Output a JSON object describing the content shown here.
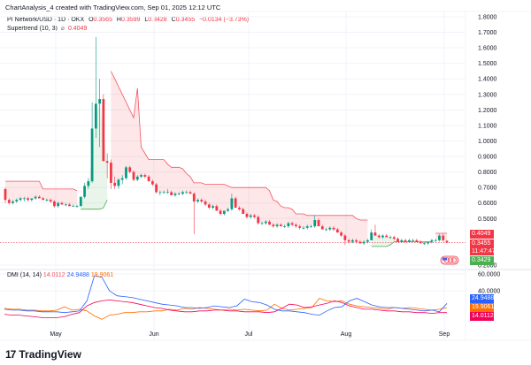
{
  "header": {
    "title": "ChartAnalysis_4 created with TradingView.com, Sep 01, 2025 12:12 UTC"
  },
  "legend": {
    "symbol": "PI Network/USD · 1D · OKX",
    "o_label": "O",
    "o": "0.3565",
    "h_label": "H",
    "h": "0.3599",
    "l_label": "L",
    "l": "0.3428",
    "c_label": "C",
    "c": "0.3455",
    "change": "−0.0134 (−3.73%)",
    "indicator": "Supertrend (10, 3)",
    "indicator_icon": "⌀",
    "indicator_value": "0.4049"
  },
  "dmi_legend": {
    "name": "DMI (14, 14)",
    "minus_di": "14.0112",
    "plus_di": "24.9488",
    "adx": "19.9061"
  },
  "price_tags": {
    "supertrend": "0.4049",
    "last": "0.3455",
    "countdown": "11:47:47",
    "low": "0.3429"
  },
  "dmi_tags": {
    "plus_di": "24.9488",
    "adx": "19.9061",
    "minus_di": "14.0112"
  },
  "branding": {
    "word": "TradingView",
    "mark": "17"
  },
  "colors": {
    "up": "#089981",
    "down": "#f23645",
    "supertrend_down": "#f7525f",
    "supertrend_up": "#4caf50",
    "fill_down": "rgba(242,54,69,0.12)",
    "fill_up": "rgba(76,175,80,0.12)",
    "plus_di": "#2962ff",
    "minus_di": "#f50057",
    "adx": "#ff6d00"
  },
  "chart_data": [
    {
      "type": "candlestick",
      "title": "PI Network/USD · 1D · OKX",
      "xlabel": "",
      "ylabel": "Price (USD)",
      "ylim": [
        0.2,
        1.8
      ],
      "y_ticks": [
        "1.8000",
        "1.7000",
        "1.6000",
        "1.5000",
        "1.4000",
        "1.3000",
        "1.2000",
        "1.1000",
        "1.0000",
        "0.9000",
        "0.8000",
        "0.7000",
        "0.6000",
        "0.5000",
        "0.2000"
      ],
      "x_ticks": [
        "May",
        "Jun",
        "Jul",
        "Aug",
        "Sep"
      ],
      "grid": true,
      "candles": [
        [
          0.69,
          0.7,
          0.6,
          0.62
        ],
        [
          0.62,
          0.63,
          0.59,
          0.6
        ],
        [
          0.6,
          0.62,
          0.59,
          0.61
        ],
        [
          0.61,
          0.63,
          0.6,
          0.62
        ],
        [
          0.62,
          0.64,
          0.61,
          0.63
        ],
        [
          0.63,
          0.64,
          0.61,
          0.63
        ],
        [
          0.63,
          0.64,
          0.61,
          0.62
        ],
        [
          0.62,
          0.63,
          0.61,
          0.63
        ],
        [
          0.63,
          0.65,
          0.62,
          0.64
        ],
        [
          0.64,
          0.65,
          0.63,
          0.63
        ],
        [
          0.63,
          0.64,
          0.62,
          0.62
        ],
        [
          0.62,
          0.63,
          0.61,
          0.62
        ],
        [
          0.62,
          0.63,
          0.6,
          0.61
        ],
        [
          0.61,
          0.62,
          0.57,
          0.58
        ],
        [
          0.58,
          0.61,
          0.57,
          0.6
        ],
        [
          0.6,
          0.61,
          0.59,
          0.59
        ],
        [
          0.59,
          0.6,
          0.58,
          0.59
        ],
        [
          0.59,
          0.6,
          0.58,
          0.58
        ],
        [
          0.58,
          0.59,
          0.58,
          0.58
        ],
        [
          0.58,
          0.59,
          0.57,
          0.58
        ],
        [
          0.58,
          0.64,
          0.58,
          0.64
        ],
        [
          0.64,
          0.73,
          0.63,
          0.71
        ],
        [
          0.71,
          0.76,
          0.69,
          0.74
        ],
        [
          0.74,
          1.25,
          0.73,
          1.08
        ],
        [
          1.08,
          1.67,
          1.02,
          1.24
        ],
        [
          1.24,
          1.4,
          0.96,
          1.27
        ],
        [
          1.27,
          1.3,
          0.88,
          0.87
        ],
        [
          0.87,
          0.92,
          0.76,
          0.86
        ],
        [
          0.86,
          0.88,
          0.69,
          0.73
        ],
        [
          0.73,
          0.77,
          0.69,
          0.71
        ],
        [
          0.71,
          0.76,
          0.69,
          0.75
        ],
        [
          0.75,
          0.78,
          0.72,
          0.76
        ],
        [
          0.76,
          0.84,
          0.75,
          0.83
        ],
        [
          0.83,
          0.84,
          0.79,
          0.8
        ],
        [
          0.8,
          0.81,
          0.74,
          0.75
        ],
        [
          0.75,
          0.78,
          0.74,
          0.77
        ],
        [
          0.77,
          0.79,
          0.76,
          0.78
        ],
        [
          0.78,
          0.79,
          0.76,
          0.77
        ],
        [
          0.77,
          0.78,
          0.74,
          0.74
        ],
        [
          0.74,
          0.75,
          0.71,
          0.72
        ],
        [
          0.72,
          0.73,
          0.66,
          0.67
        ],
        [
          0.67,
          0.68,
          0.65,
          0.67
        ],
        [
          0.67,
          0.68,
          0.66,
          0.67
        ],
        [
          0.67,
          0.69,
          0.66,
          0.67
        ],
        [
          0.67,
          0.68,
          0.65,
          0.65
        ],
        [
          0.65,
          0.67,
          0.64,
          0.66
        ],
        [
          0.66,
          0.67,
          0.65,
          0.66
        ],
        [
          0.66,
          0.68,
          0.65,
          0.67
        ],
        [
          0.67,
          0.68,
          0.66,
          0.67
        ],
        [
          0.67,
          0.68,
          0.66,
          0.66
        ],
        [
          0.66,
          0.67,
          0.4,
          0.61
        ],
        [
          0.61,
          0.63,
          0.6,
          0.62
        ],
        [
          0.62,
          0.63,
          0.6,
          0.61
        ],
        [
          0.61,
          0.62,
          0.58,
          0.59
        ],
        [
          0.59,
          0.6,
          0.56,
          0.57
        ],
        [
          0.57,
          0.59,
          0.56,
          0.58
        ],
        [
          0.58,
          0.59,
          0.55,
          0.55
        ],
        [
          0.55,
          0.56,
          0.52,
          0.53
        ],
        [
          0.53,
          0.55,
          0.52,
          0.55
        ],
        [
          0.55,
          0.57,
          0.54,
          0.56
        ],
        [
          0.56,
          0.66,
          0.55,
          0.63
        ],
        [
          0.63,
          0.64,
          0.57,
          0.57
        ],
        [
          0.57,
          0.58,
          0.55,
          0.56
        ],
        [
          0.56,
          0.57,
          0.53,
          0.53
        ],
        [
          0.53,
          0.54,
          0.5,
          0.51
        ],
        [
          0.51,
          0.53,
          0.5,
          0.52
        ],
        [
          0.52,
          0.53,
          0.5,
          0.51
        ],
        [
          0.51,
          0.52,
          0.46,
          0.47
        ],
        [
          0.47,
          0.48,
          0.46,
          0.47
        ],
        [
          0.47,
          0.49,
          0.46,
          0.48
        ],
        [
          0.48,
          0.49,
          0.46,
          0.46
        ],
        [
          0.46,
          0.47,
          0.44,
          0.45
        ],
        [
          0.45,
          0.47,
          0.44,
          0.46
        ],
        [
          0.46,
          0.47,
          0.45,
          0.45
        ],
        [
          0.45,
          0.46,
          0.44,
          0.45
        ],
        [
          0.45,
          0.48,
          0.44,
          0.47
        ],
        [
          0.47,
          0.48,
          0.45,
          0.46
        ],
        [
          0.46,
          0.47,
          0.44,
          0.45
        ],
        [
          0.45,
          0.46,
          0.43,
          0.44
        ],
        [
          0.44,
          0.45,
          0.43,
          0.44
        ],
        [
          0.44,
          0.46,
          0.43,
          0.45
        ],
        [
          0.45,
          0.46,
          0.44,
          0.45
        ],
        [
          0.45,
          0.52,
          0.44,
          0.49
        ],
        [
          0.49,
          0.5,
          0.45,
          0.45
        ],
        [
          0.45,
          0.46,
          0.43,
          0.43
        ],
        [
          0.43,
          0.44,
          0.42,
          0.43
        ],
        [
          0.43,
          0.45,
          0.42,
          0.44
        ],
        [
          0.44,
          0.45,
          0.42,
          0.43
        ],
        [
          0.43,
          0.44,
          0.41,
          0.41
        ],
        [
          0.41,
          0.42,
          0.38,
          0.39
        ],
        [
          0.39,
          0.4,
          0.33,
          0.36
        ],
        [
          0.36,
          0.37,
          0.34,
          0.35
        ],
        [
          0.35,
          0.37,
          0.34,
          0.36
        ],
        [
          0.36,
          0.37,
          0.34,
          0.35
        ],
        [
          0.35,
          0.36,
          0.34,
          0.34
        ],
        [
          0.34,
          0.36,
          0.33,
          0.35
        ],
        [
          0.35,
          0.37,
          0.34,
          0.36
        ],
        [
          0.36,
          0.43,
          0.36,
          0.41
        ],
        [
          0.41,
          0.46,
          0.4,
          0.39
        ],
        [
          0.39,
          0.4,
          0.37,
          0.38
        ],
        [
          0.38,
          0.4,
          0.37,
          0.39
        ],
        [
          0.39,
          0.4,
          0.38,
          0.38
        ],
        [
          0.38,
          0.39,
          0.37,
          0.38
        ],
        [
          0.38,
          0.39,
          0.36,
          0.37
        ],
        [
          0.37,
          0.38,
          0.35,
          0.35
        ],
        [
          0.35,
          0.37,
          0.35,
          0.36
        ],
        [
          0.36,
          0.37,
          0.35,
          0.35
        ],
        [
          0.35,
          0.37,
          0.35,
          0.36
        ],
        [
          0.36,
          0.37,
          0.35,
          0.36
        ],
        [
          0.36,
          0.37,
          0.35,
          0.35
        ],
        [
          0.35,
          0.36,
          0.34,
          0.34
        ],
        [
          0.34,
          0.35,
          0.33,
          0.34
        ],
        [
          0.34,
          0.35,
          0.33,
          0.35
        ],
        [
          0.35,
          0.37,
          0.34,
          0.36
        ],
        [
          0.36,
          0.37,
          0.35,
          0.36
        ],
        [
          0.36,
          0.4,
          0.35,
          0.39
        ],
        [
          0.39,
          0.4,
          0.35,
          0.36
        ],
        [
          0.3565,
          0.3599,
          0.3428,
          0.3455
        ]
      ],
      "supertrend": {
        "name": "Supertrend (10, 3)",
        "last_value": 0.4049,
        "segments_note": "down (red) except up (green) during mid-May rally and early-Aug consolidation"
      }
    },
    {
      "type": "line",
      "title": "DMI (14, 14)",
      "ylim": [
        0,
        60
      ],
      "y_ticks": [
        "60.0000",
        "40.0000"
      ],
      "series": [
        {
          "name": "+DI",
          "last": 24.9488
        },
        {
          "name": "ADX",
          "last": 19.9061
        },
        {
          "name": "-DI",
          "last": 14.0112
        }
      ]
    }
  ]
}
